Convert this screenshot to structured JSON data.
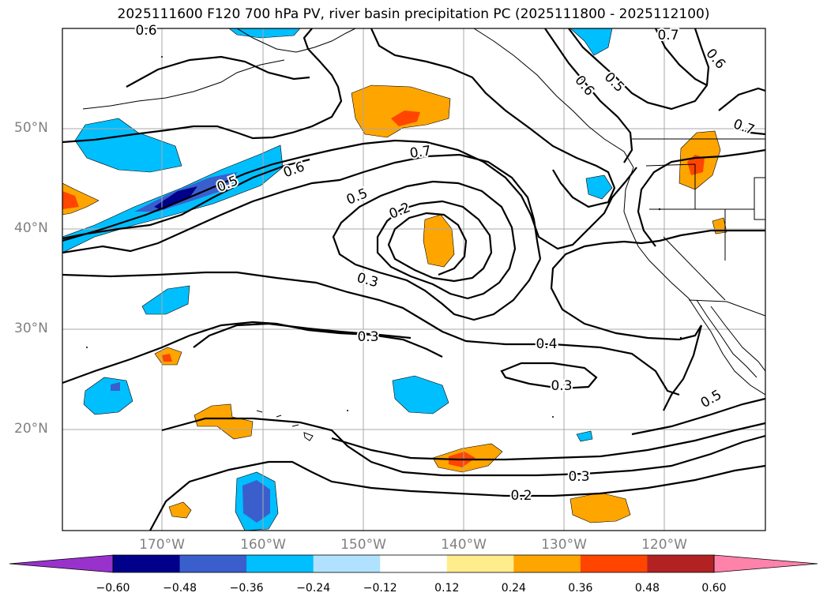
{
  "title": "2025111600 F120 700 hPa PV, river basin precipitation PC (2025111800 - 2025112100)",
  "map": {
    "lat_labels": [
      "50°N",
      "40°N",
      "30°N",
      "20°N"
    ],
    "lon_labels": [
      "170°W",
      "160°W",
      "150°W",
      "140°W",
      "130°W",
      "120°W"
    ],
    "contour_labels": [
      "0.6",
      "0.7",
      "0.6",
      "0.5",
      "0.6",
      "0.7",
      "0.5",
      "0.6",
      "0.7",
      "0.5",
      "0.2",
      "0.3",
      "0.3",
      "0.4",
      "0.3",
      "0.5",
      "0.3",
      "0.2"
    ]
  },
  "colorbar": {
    "tick_labels": [
      "−0.60",
      "−0.48",
      "−0.36",
      "−0.24",
      "−0.12",
      "0.12",
      "0.24",
      "0.36",
      "0.48",
      "0.60"
    ],
    "colors": [
      "#9932cc",
      "#00008b",
      "#3a5fcd",
      "#00bfff",
      "#b0e2ff",
      "#ffffff",
      "#ffec8b",
      "#ffa500",
      "#ff4500",
      "#b22222",
      "#ff82ab"
    ]
  }
}
